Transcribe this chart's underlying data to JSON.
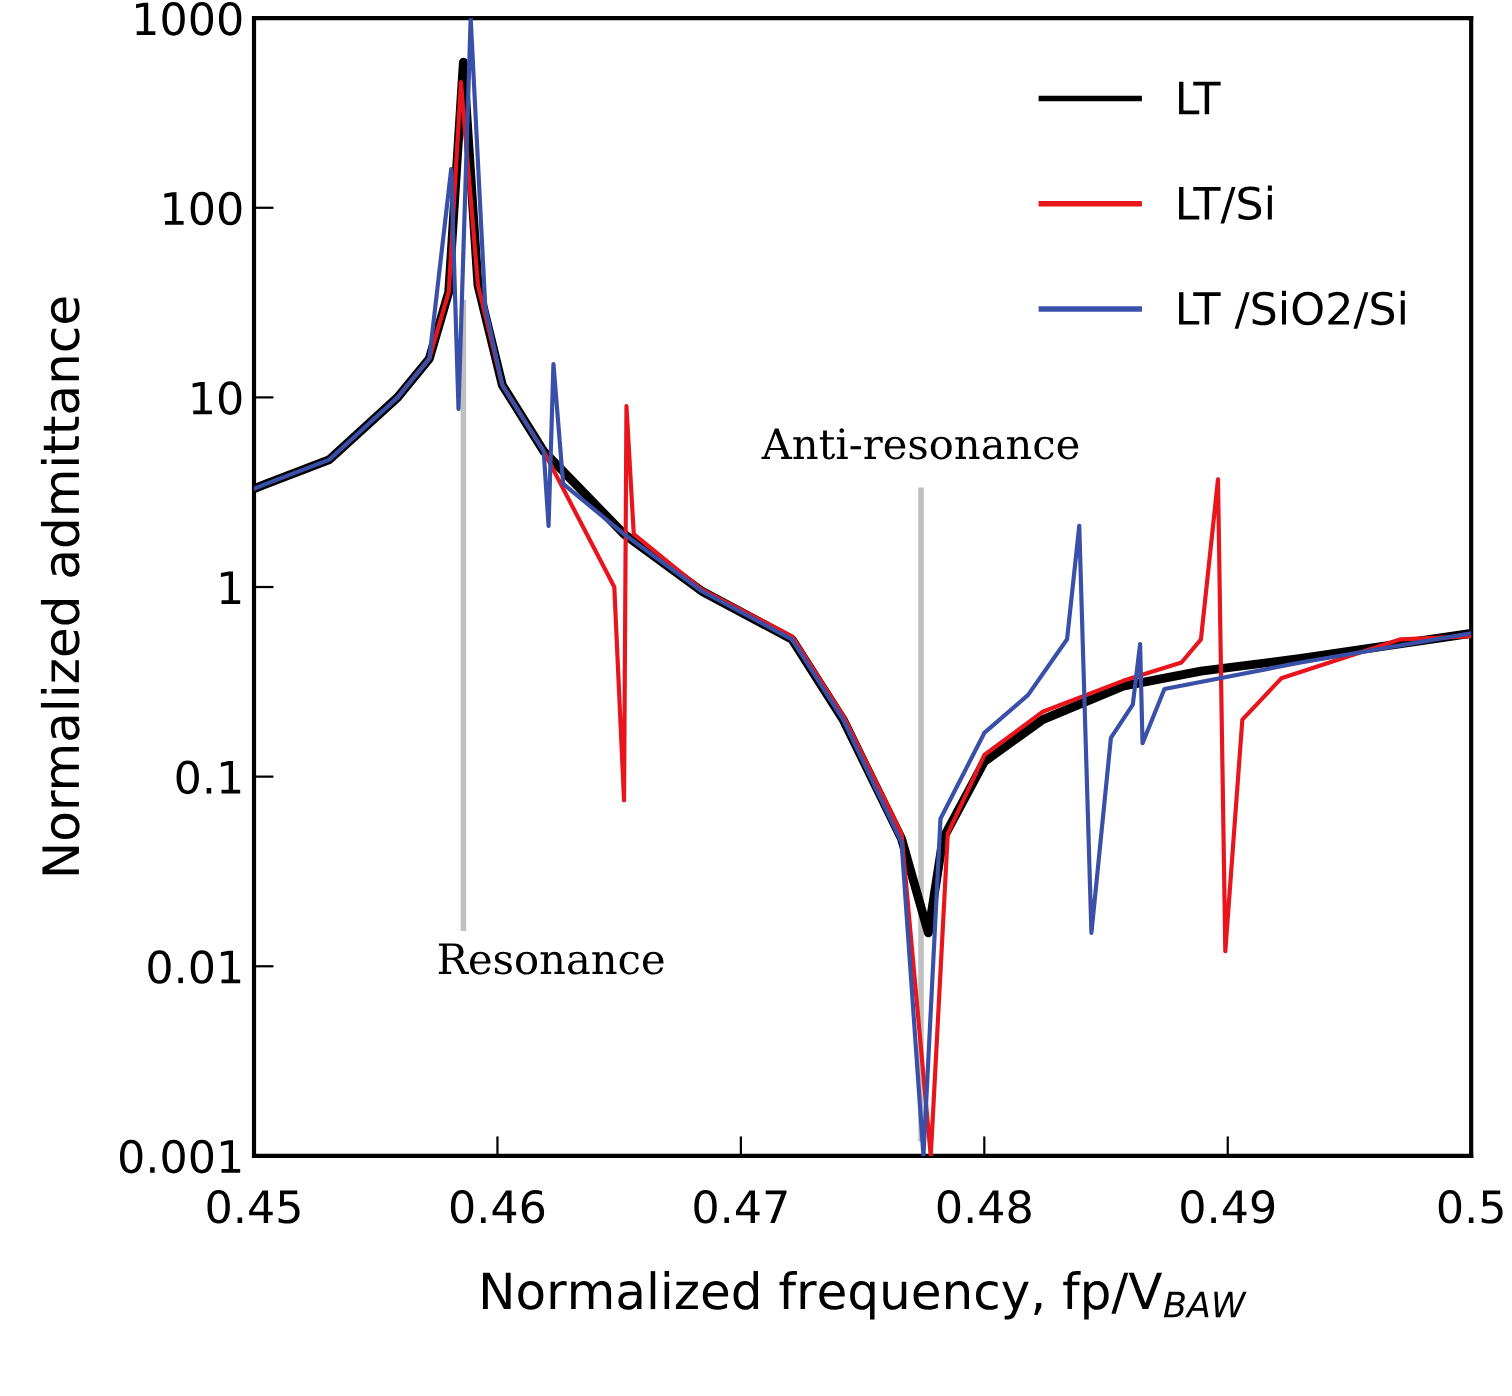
{
  "chart_data": {
    "type": "line",
    "xlabel": "Normalized frequency, fp/V$_{BAW}$",
    "ylabel": "Normalized admittance",
    "log": "y",
    "xlim": [
      0.45,
      0.5
    ],
    "xticks": [
      0.45,
      0.46,
      0.47,
      0.48,
      0.49,
      0.5
    ],
    "ylim": [
      0.001,
      1000
    ],
    "yticks": [
      {
        "value": 0.001,
        "label": "0.001"
      },
      {
        "value": 0.01,
        "label": "0.01"
      },
      {
        "value": 0.1,
        "label": "0.1"
      },
      {
        "value": 1,
        "label": "1"
      },
      {
        "value": 10,
        "label": "10"
      },
      {
        "value": 100,
        "label": "100"
      },
      {
        "value": 1000,
        "label": "1000"
      }
    ],
    "grid": false,
    "legend": "top right",
    "ref_lines": [
      {
        "axis": "x",
        "value": 0.4586,
        "label": "Resonance",
        "color": "#c0c0c0"
      },
      {
        "axis": "x",
        "value": 0.4774,
        "label": "Anti-resonance",
        "color": "#c0c0c0"
      }
    ],
    "series": [
      {
        "name": "LT",
        "color": "#000000",
        "x": [
          0.45,
          0.4505,
          0.4531,
          0.4559,
          0.4572,
          0.458,
          0.4586,
          0.4592,
          0.4602,
          0.4619,
          0.4652,
          0.4684,
          0.4721,
          0.4742,
          0.4766,
          0.4777,
          0.4783,
          0.48,
          0.4824,
          0.4857,
          0.4889,
          0.493,
          0.5
        ],
        "values": [
          3.3,
          3.5,
          4.7,
          10,
          16,
          36,
          585,
          39,
          11.6,
          5.2,
          1.9,
          0.95,
          0.53,
          0.2,
          0.047,
          0.015,
          0.047,
          0.12,
          0.2,
          0.3,
          0.36,
          0.42,
          0.57
        ]
      },
      {
        "name": "LT/Si",
        "color": "#e8161c",
        "x": [
          0.4559,
          0.4572,
          0.458,
          0.4585,
          0.4592,
          0.4602,
          0.4619,
          0.4648,
          0.4652,
          0.4653,
          0.4656,
          0.4684,
          0.4721,
          0.4742,
          0.4766,
          0.4778,
          0.4785,
          0.48,
          0.4824,
          0.4857,
          0.4881,
          0.4889,
          0.4896,
          0.4899,
          0.4906,
          0.4922,
          0.4971,
          0.5
        ],
        "values": [
          10,
          16,
          36,
          460,
          39,
          11.6,
          5.2,
          1.0,
          0.075,
          9,
          1.9,
          0.97,
          0.55,
          0.21,
          0.05,
          0.001,
          0.05,
          0.13,
          0.22,
          0.32,
          0.4,
          0.53,
          3.7,
          0.012,
          0.2,
          0.33,
          0.53,
          0.55
        ]
      },
      {
        "name": "LT /SiO2/Si",
        "color": "#3a50a8",
        "x": [
          0.45,
          0.4505,
          0.4531,
          0.4559,
          0.4572,
          0.4581,
          0.4584,
          0.4589,
          0.4595,
          0.4602,
          0.4619,
          0.4621,
          0.4623,
          0.4627,
          0.4652,
          0.4684,
          0.4721,
          0.4742,
          0.4766,
          0.4775,
          0.4782,
          0.48,
          0.4818,
          0.4834,
          0.4839,
          0.4844,
          0.4852,
          0.4861,
          0.4864,
          0.4865,
          0.4874,
          0.493,
          0.5
        ],
        "values": [
          3.3,
          3.5,
          4.7,
          10,
          16,
          160,
          8.7,
          1000,
          30,
          11.6,
          5.2,
          2.1,
          15,
          3.5,
          1.9,
          0.95,
          0.53,
          0.2,
          0.045,
          0.001,
          0.06,
          0.17,
          0.27,
          0.53,
          2.1,
          0.015,
          0.16,
          0.24,
          0.5,
          0.15,
          0.29,
          0.4,
          0.57
        ]
      }
    ]
  }
}
